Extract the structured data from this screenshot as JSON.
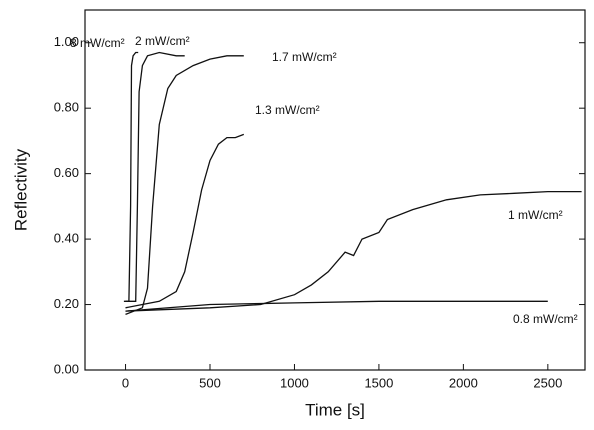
{
  "chart_data": {
    "type": "line",
    "xlabel": "Time [s]",
    "ylabel": "Reflectivity",
    "xlim": [
      -240,
      2720
    ],
    "ylim": [
      0,
      1.1
    ],
    "xticks": [
      0,
      500,
      1000,
      1500,
      2000,
      2500
    ],
    "yticks": [
      {
        "value": 0,
        "label": "0.00"
      },
      {
        "value": 0.2,
        "label": "0.20"
      },
      {
        "value": 0.4,
        "label": "0.40"
      },
      {
        "value": 0.6,
        "label": "0.60"
      },
      {
        "value": 0.8,
        "label": "0.80"
      },
      {
        "value": 1,
        "label": "1.00"
      }
    ],
    "series": [
      {
        "name": "8 mW/cm²",
        "color": "#111111",
        "x": [
          -10,
          20,
          30,
          35,
          45,
          60,
          75
        ],
        "values": [
          0.21,
          0.21,
          0.5,
          0.93,
          0.96,
          0.97,
          0.97
        ]
      },
      {
        "name": "2 mW/cm²",
        "color": "#111111",
        "x": [
          0,
          60,
          70,
          80,
          100,
          130,
          200,
          300,
          350
        ],
        "values": [
          0.21,
          0.21,
          0.5,
          0.85,
          0.93,
          0.96,
          0.97,
          0.96,
          0.96
        ]
      },
      {
        "name": "1.7 mW/cm²",
        "color": "#111111",
        "x": [
          0,
          100,
          130,
          160,
          200,
          250,
          300,
          400,
          500,
          600,
          700
        ],
        "values": [
          0.17,
          0.19,
          0.25,
          0.5,
          0.75,
          0.86,
          0.9,
          0.93,
          0.95,
          0.96,
          0.96
        ]
      },
      {
        "name": "1.3 mW/cm²",
        "color": "#111111",
        "x": [
          0,
          100,
          200,
          300,
          350,
          400,
          450,
          500,
          550,
          600,
          650,
          700
        ],
        "values": [
          0.19,
          0.2,
          0.21,
          0.24,
          0.3,
          0.42,
          0.55,
          0.64,
          0.69,
          0.71,
          0.71,
          0.72
        ]
      },
      {
        "name": "1 mW/cm²",
        "color": "#111111",
        "x": [
          0,
          500,
          800,
          1000,
          1100,
          1200,
          1300,
          1350,
          1400,
          1500,
          1550,
          1700,
          1900,
          2100,
          2300,
          2500,
          2700
        ],
        "values": [
          0.18,
          0.19,
          0.2,
          0.23,
          0.26,
          0.3,
          0.36,
          0.35,
          0.4,
          0.42,
          0.46,
          0.49,
          0.52,
          0.535,
          0.54,
          0.545,
          0.545
        ]
      },
      {
        "name": "0.8 mW/cm²",
        "color": "#111111",
        "x": [
          0,
          500,
          1000,
          1500,
          2000,
          2500
        ],
        "values": [
          0.18,
          0.2,
          0.205,
          0.21,
          0.21,
          0.21
        ]
      }
    ]
  }
}
